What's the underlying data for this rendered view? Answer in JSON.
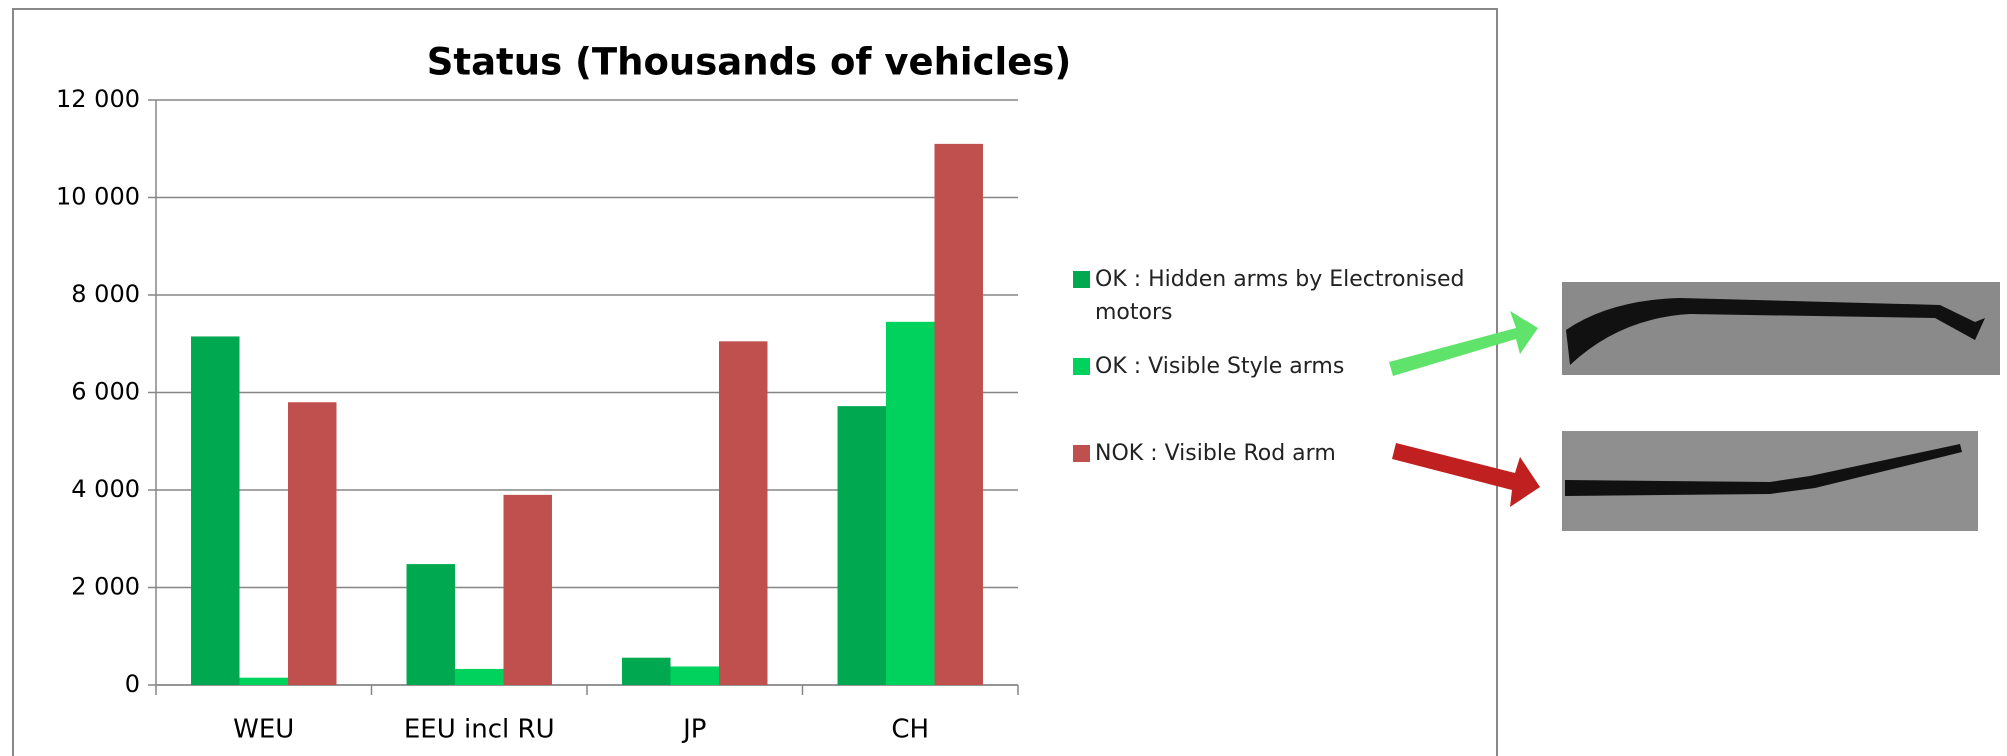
{
  "chart_data": {
    "type": "bar",
    "title": "Status (Thousands of vehicles)",
    "categories": [
      "WEU",
      "EEU incl RU",
      "JP",
      "CH"
    ],
    "series": [
      {
        "name": "OK : Hidden arms by Electronised motors",
        "color": "#00a84f",
        "values": [
          7150,
          2480,
          560,
          5720
        ]
      },
      {
        "name": "OK : Visible Style arms",
        "color": "#00d25e",
        "values": [
          150,
          330,
          380,
          7450
        ]
      },
      {
        "name": "NOK : Visible Rod arm",
        "color": "#c0504d",
        "values": [
          5800,
          3900,
          7050,
          11100
        ]
      }
    ],
    "ylim": [
      0,
      12000
    ],
    "yticks": [
      0,
      {
        "value": 2000,
        "label": "2 000"
      },
      {
        "value": 4000,
        "label": "4 000"
      },
      {
        "value": 6000,
        "label": "6 000"
      },
      {
        "value": 8000,
        "label": "8 000"
      },
      {
        "value": 10000,
        "label": "10 000"
      },
      {
        "value": 12000,
        "label": "12 000"
      }
    ],
    "grid": true
  }
}
